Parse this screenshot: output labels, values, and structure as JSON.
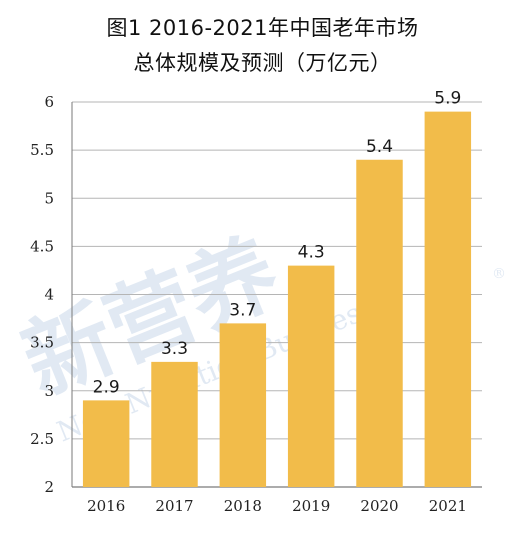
{
  "title_line1": "图1 2016-2021年中国老年市场",
  "title_line2": "总体规模及预测（万亿元）",
  "watermark": {
    "main": "新营养",
    "sub": "New Nutrition Business",
    "mark": "®"
  },
  "colors": {
    "bar": "#F2BC4A",
    "grid": "#b5b5b5",
    "axis": "#7a7a7a"
  },
  "chart_data": {
    "type": "bar",
    "title": "图1 2016-2021年中国老年市场总体规模及预测（万亿元）",
    "categories": [
      "2016",
      "2017",
      "2018",
      "2019",
      "2020",
      "2021"
    ],
    "values": [
      2.9,
      3.3,
      3.7,
      4.3,
      5.4,
      5.9
    ],
    "data_labels": [
      "2.9",
      "3.3",
      "3.7",
      "4.3",
      "5.4",
      "5.9"
    ],
    "ylim": [
      2,
      6
    ],
    "yticks": [
      "2",
      "2.5",
      "3",
      "3.5",
      "4",
      "4.5",
      "5",
      "5.5",
      "6"
    ],
    "xlabel": "",
    "ylabel": "",
    "grid": true
  }
}
